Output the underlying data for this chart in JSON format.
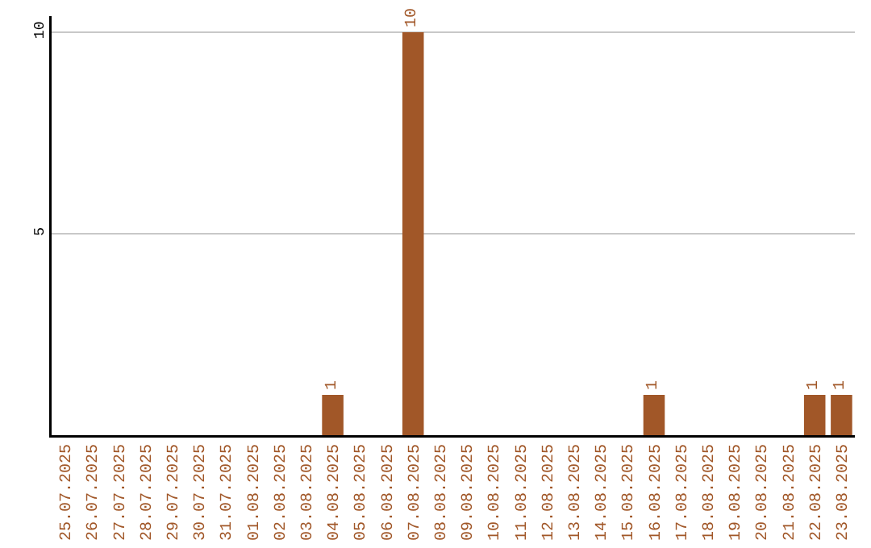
{
  "chart_data": {
    "type": "bar",
    "categories": [
      "25.07.2025",
      "26.07.2025",
      "27.07.2025",
      "28.07.2025",
      "29.07.2025",
      "30.07.2025",
      "31.07.2025",
      "01.08.2025",
      "02.08.2025",
      "03.08.2025",
      "04.08.2025",
      "05.08.2025",
      "06.08.2025",
      "07.08.2025",
      "08.08.2025",
      "09.08.2025",
      "10.08.2025",
      "11.08.2025",
      "12.08.2025",
      "13.08.2025",
      "14.08.2025",
      "15.08.2025",
      "16.08.2025",
      "17.08.2025",
      "18.08.2025",
      "19.08.2025",
      "20.08.2025",
      "21.08.2025",
      "22.08.2025",
      "23.08.2025"
    ],
    "values": [
      0,
      0,
      0,
      0,
      0,
      0,
      0,
      0,
      0,
      0,
      1,
      0,
      0,
      10,
      0,
      0,
      0,
      0,
      0,
      0,
      0,
      0,
      1,
      0,
      0,
      0,
      0,
      0,
      1,
      1
    ],
    "value_labels": [
      null,
      null,
      null,
      null,
      null,
      null,
      null,
      null,
      null,
      null,
      "1",
      null,
      null,
      "10",
      null,
      null,
      null,
      null,
      null,
      null,
      null,
      null,
      "1",
      null,
      null,
      null,
      null,
      null,
      "1",
      "1"
    ],
    "color": "#a15728",
    "ylim": [
      0,
      10.4
    ],
    "yticks": [
      5,
      10
    ],
    "grid": "y",
    "legend": false
  }
}
